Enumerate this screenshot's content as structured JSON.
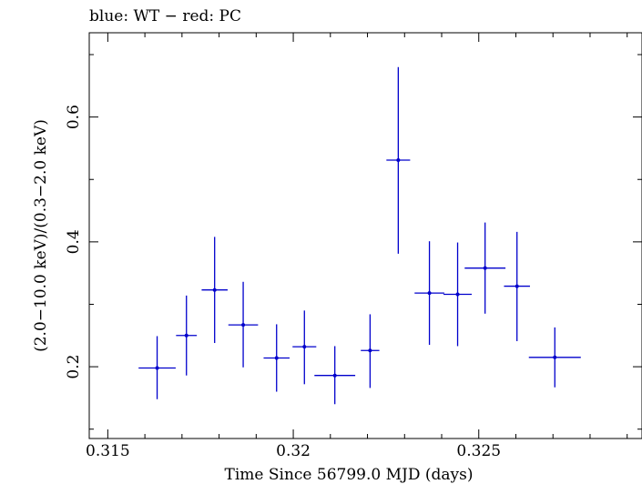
{
  "chart_data": {
    "type": "scatter",
    "title": "blue: WT − red: PC",
    "xlabel": "Time Since 56799.0 MJD (days)",
    "ylabel": "(2.0−10.0 keV)/(0.3−2.0 keV)",
    "xlim": [
      0.3145,
      0.3294
    ],
    "ylim": [
      0.085,
      0.735
    ],
    "x_ticks": [
      0.315,
      0.32,
      0.325
    ],
    "x_tick_labels": [
      "0.315",
      "0.32",
      "0.325"
    ],
    "y_ticks": [
      0.2,
      0.4,
      0.6
    ],
    "y_tick_labels": [
      "0.2",
      "0.4",
      "0.6"
    ],
    "grid": false,
    "series": [
      {
        "name": "WT",
        "color": "#0000cc",
        "points": [
          {
            "x": 0.31633,
            "y": 0.198,
            "xerr": 0.0005,
            "ylo": 0.148,
            "yhi": 0.249
          },
          {
            "x": 0.31712,
            "y": 0.25,
            "xerr": 0.00028,
            "ylo": 0.186,
            "yhi": 0.314
          },
          {
            "x": 0.31788,
            "y": 0.323,
            "xerr": 0.00035,
            "ylo": 0.238,
            "yhi": 0.408
          },
          {
            "x": 0.31865,
            "y": 0.267,
            "xerr": 0.0004,
            "ylo": 0.199,
            "yhi": 0.336
          },
          {
            "x": 0.31955,
            "y": 0.214,
            "xerr": 0.00035,
            "ylo": 0.16,
            "yhi": 0.268
          },
          {
            "x": 0.3203,
            "y": 0.232,
            "xerr": 0.00032,
            "ylo": 0.172,
            "yhi": 0.29
          },
          {
            "x": 0.32112,
            "y": 0.186,
            "xerr": 0.00055,
            "ylo": 0.14,
            "yhi": 0.233
          },
          {
            "x": 0.32207,
            "y": 0.226,
            "xerr": 0.00025,
            "ylo": 0.166,
            "yhi": 0.284
          },
          {
            "x": 0.32283,
            "y": 0.531,
            "xerr": 0.00032,
            "ylo": 0.381,
            "yhi": 0.68
          },
          {
            "x": 0.32367,
            "y": 0.318,
            "xerr": 0.0004,
            "ylo": 0.235,
            "yhi": 0.401
          },
          {
            "x": 0.32443,
            "y": 0.316,
            "xerr": 0.00038,
            "ylo": 0.233,
            "yhi": 0.399
          },
          {
            "x": 0.32517,
            "y": 0.358,
            "xerr": 0.00055,
            "ylo": 0.285,
            "yhi": 0.431
          },
          {
            "x": 0.32603,
            "y": 0.329,
            "xerr": 0.00035,
            "ylo": 0.241,
            "yhi": 0.416
          },
          {
            "x": 0.32705,
            "y": 0.215,
            "xerr": 0.0007,
            "ylo": 0.167,
            "yhi": 0.263
          }
        ]
      }
    ]
  }
}
